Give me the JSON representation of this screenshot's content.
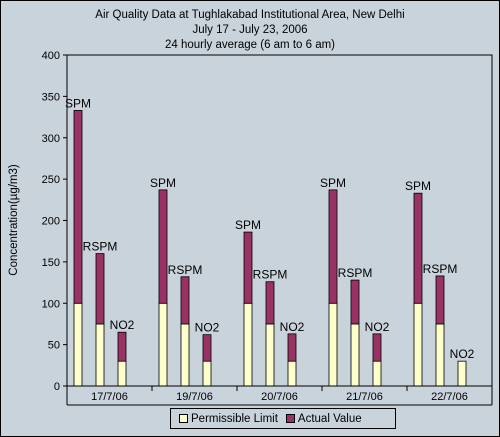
{
  "chart_data": {
    "type": "bar",
    "stacked": true,
    "title": [
      "Air Quality Data at Tughlakabad Institutional Area, New Delhi",
      "July 17 - July 23, 2006",
      "24 hourly average (6 am to 6 am)"
    ],
    "xlabel": "",
    "ylabel": "Concentration(µg/m3)",
    "ylim": [
      0,
      400
    ],
    "yticks": [
      "0",
      "50",
      "100",
      "150",
      "200",
      "250",
      "300",
      "350",
      "400"
    ],
    "groups": [
      "17/7/06",
      "19/7/06",
      "20/7/06",
      "21/7/06",
      "22/7/06"
    ],
    "pollutants": [
      "SPM",
      "RSPM",
      "NO2"
    ],
    "series": [
      {
        "name": "Permissible Limit",
        "color": "#ffffcc",
        "values": [
          [
            100,
            75,
            30
          ],
          [
            100,
            75,
            30
          ],
          [
            100,
            75,
            30
          ],
          [
            100,
            75,
            30
          ],
          [
            100,
            75,
            30
          ]
        ]
      },
      {
        "name": "Actual Value",
        "color": "#993366",
        "values": [
          [
            233,
            85,
            35
          ],
          [
            137,
            57,
            32
          ],
          [
            86,
            51,
            33
          ],
          [
            137,
            53,
            33
          ],
          [
            133,
            58,
            0
          ]
        ]
      }
    ],
    "grid": false,
    "legend_position": "bottom"
  }
}
